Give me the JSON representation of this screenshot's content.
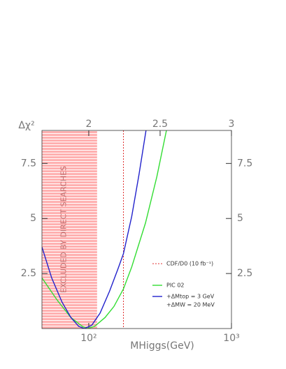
{
  "chart_data": {
    "type": "line",
    "x_label": "MHiggs(GeV)",
    "y_label": "Δχ²",
    "xscale": "log",
    "xlim": [
      47,
      1000
    ],
    "xticks": [
      {
        "value": 100,
        "label": "10²"
      },
      {
        "value": 1000,
        "label": "10³"
      }
    ],
    "x2lim": [
      1.672,
      3
    ],
    "x2ticks": [
      2,
      2.5,
      3
    ],
    "ylim": [
      0,
      9
    ],
    "yticks": [
      2.5,
      5,
      7.5
    ],
    "excluded_region": {
      "x": [
        47,
        114.4
      ],
      "label": "EXCLUDED BY DIRECT SEARCHES",
      "color": "#ffb0b0"
    },
    "vline": {
      "x": 175,
      "name": "CDF/D0 (10 fb⁻¹)",
      "color": "#e03030"
    },
    "series": [
      {
        "name": "PIC 02",
        "color": "#33dd33",
        "x": [
          47,
          60,
          75,
          90,
          98,
          110,
          130,
          150,
          175,
          200,
          250,
          300,
          350
        ],
        "values": [
          2.3,
          1.3,
          0.5,
          0.1,
          0,
          0.1,
          0.5,
          1.0,
          1.8,
          2.8,
          4.8,
          6.9,
          9
        ]
      },
      {
        "name": "+ΔMtop = 3 GeV",
        "note": "+ΔMW = 20 MeV",
        "color": "#2222cc",
        "x": [
          47,
          55,
          65,
          75,
          85,
          93,
          105,
          120,
          140,
          160,
          175,
          200,
          225,
          252
        ],
        "values": [
          3.7,
          2.3,
          1.2,
          0.5,
          0.1,
          0,
          0.15,
          0.7,
          1.7,
          2.7,
          3.4,
          5.1,
          7.0,
          9
        ]
      }
    ]
  }
}
